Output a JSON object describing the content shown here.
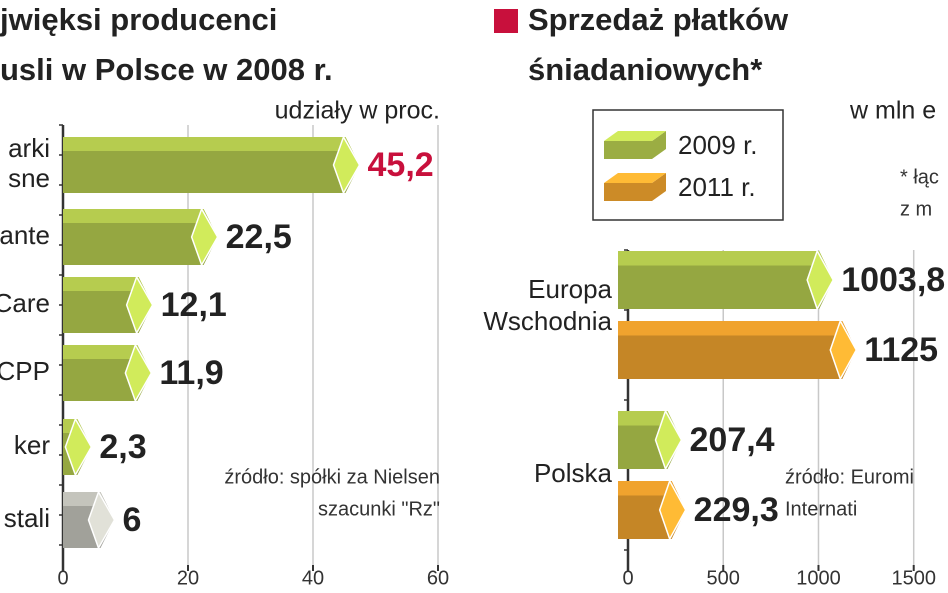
{
  "chart_data": [
    {
      "type": "hbar",
      "title": [
        "jwięksi producenci",
        "usli w Polsce w 2008 r."
      ],
      "subtitle": "udziały w proc.",
      "categories": [
        "arki sne",
        "ante",
        "Care",
        "CPP",
        "ker",
        "stali"
      ],
      "values": [
        45.2,
        22.5,
        12.1,
        11.9,
        2.3,
        6
      ],
      "value_labels": [
        "45,2",
        "22,5",
        "12,1",
        "11,9",
        "2,3",
        "6"
      ],
      "colors": [
        "#b6cc4f",
        "#b6cc4f",
        "#b6cc4f",
        "#b6cc4f",
        "#b6cc4f",
        "#c4c4bc"
      ],
      "value_label_colors": [
        "#c8103c",
        "#222222",
        "#222222",
        "#222222",
        "#222222",
        "#222222"
      ],
      "source": [
        "źródło: spółki za Nielsen",
        "szacunki \"Rz\""
      ],
      "xlim": [
        0,
        60
      ],
      "xticks": [
        0,
        20,
        40,
        60
      ],
      "grid": true
    },
    {
      "type": "hbar",
      "title": [
        "Sprzedaż płatków",
        "śniadaniowych*"
      ],
      "title_marker_color": "#c8103c",
      "subtitle": "w mln e",
      "categories": [
        "Europa Wschodnia",
        "Polska"
      ],
      "series": [
        {
          "name": "2009 r.",
          "color": "#b6cc4f",
          "values": [
            1003.8,
            207.4
          ],
          "value_labels": [
            "1003,8",
            "207,4"
          ]
        },
        {
          "name": "2011 r.",
          "color": "#f0a32e",
          "values": [
            1125,
            229.3
          ],
          "value_labels": [
            "1125",
            "229,3"
          ]
        }
      ],
      "note": [
        "* łąc",
        "z m"
      ],
      "source": [
        "źródło: Euromi",
        "Internati"
      ],
      "xlim": [
        0,
        1680
      ],
      "xticks": [
        0,
        500,
        1000,
        1500
      ],
      "grid": true
    }
  ]
}
